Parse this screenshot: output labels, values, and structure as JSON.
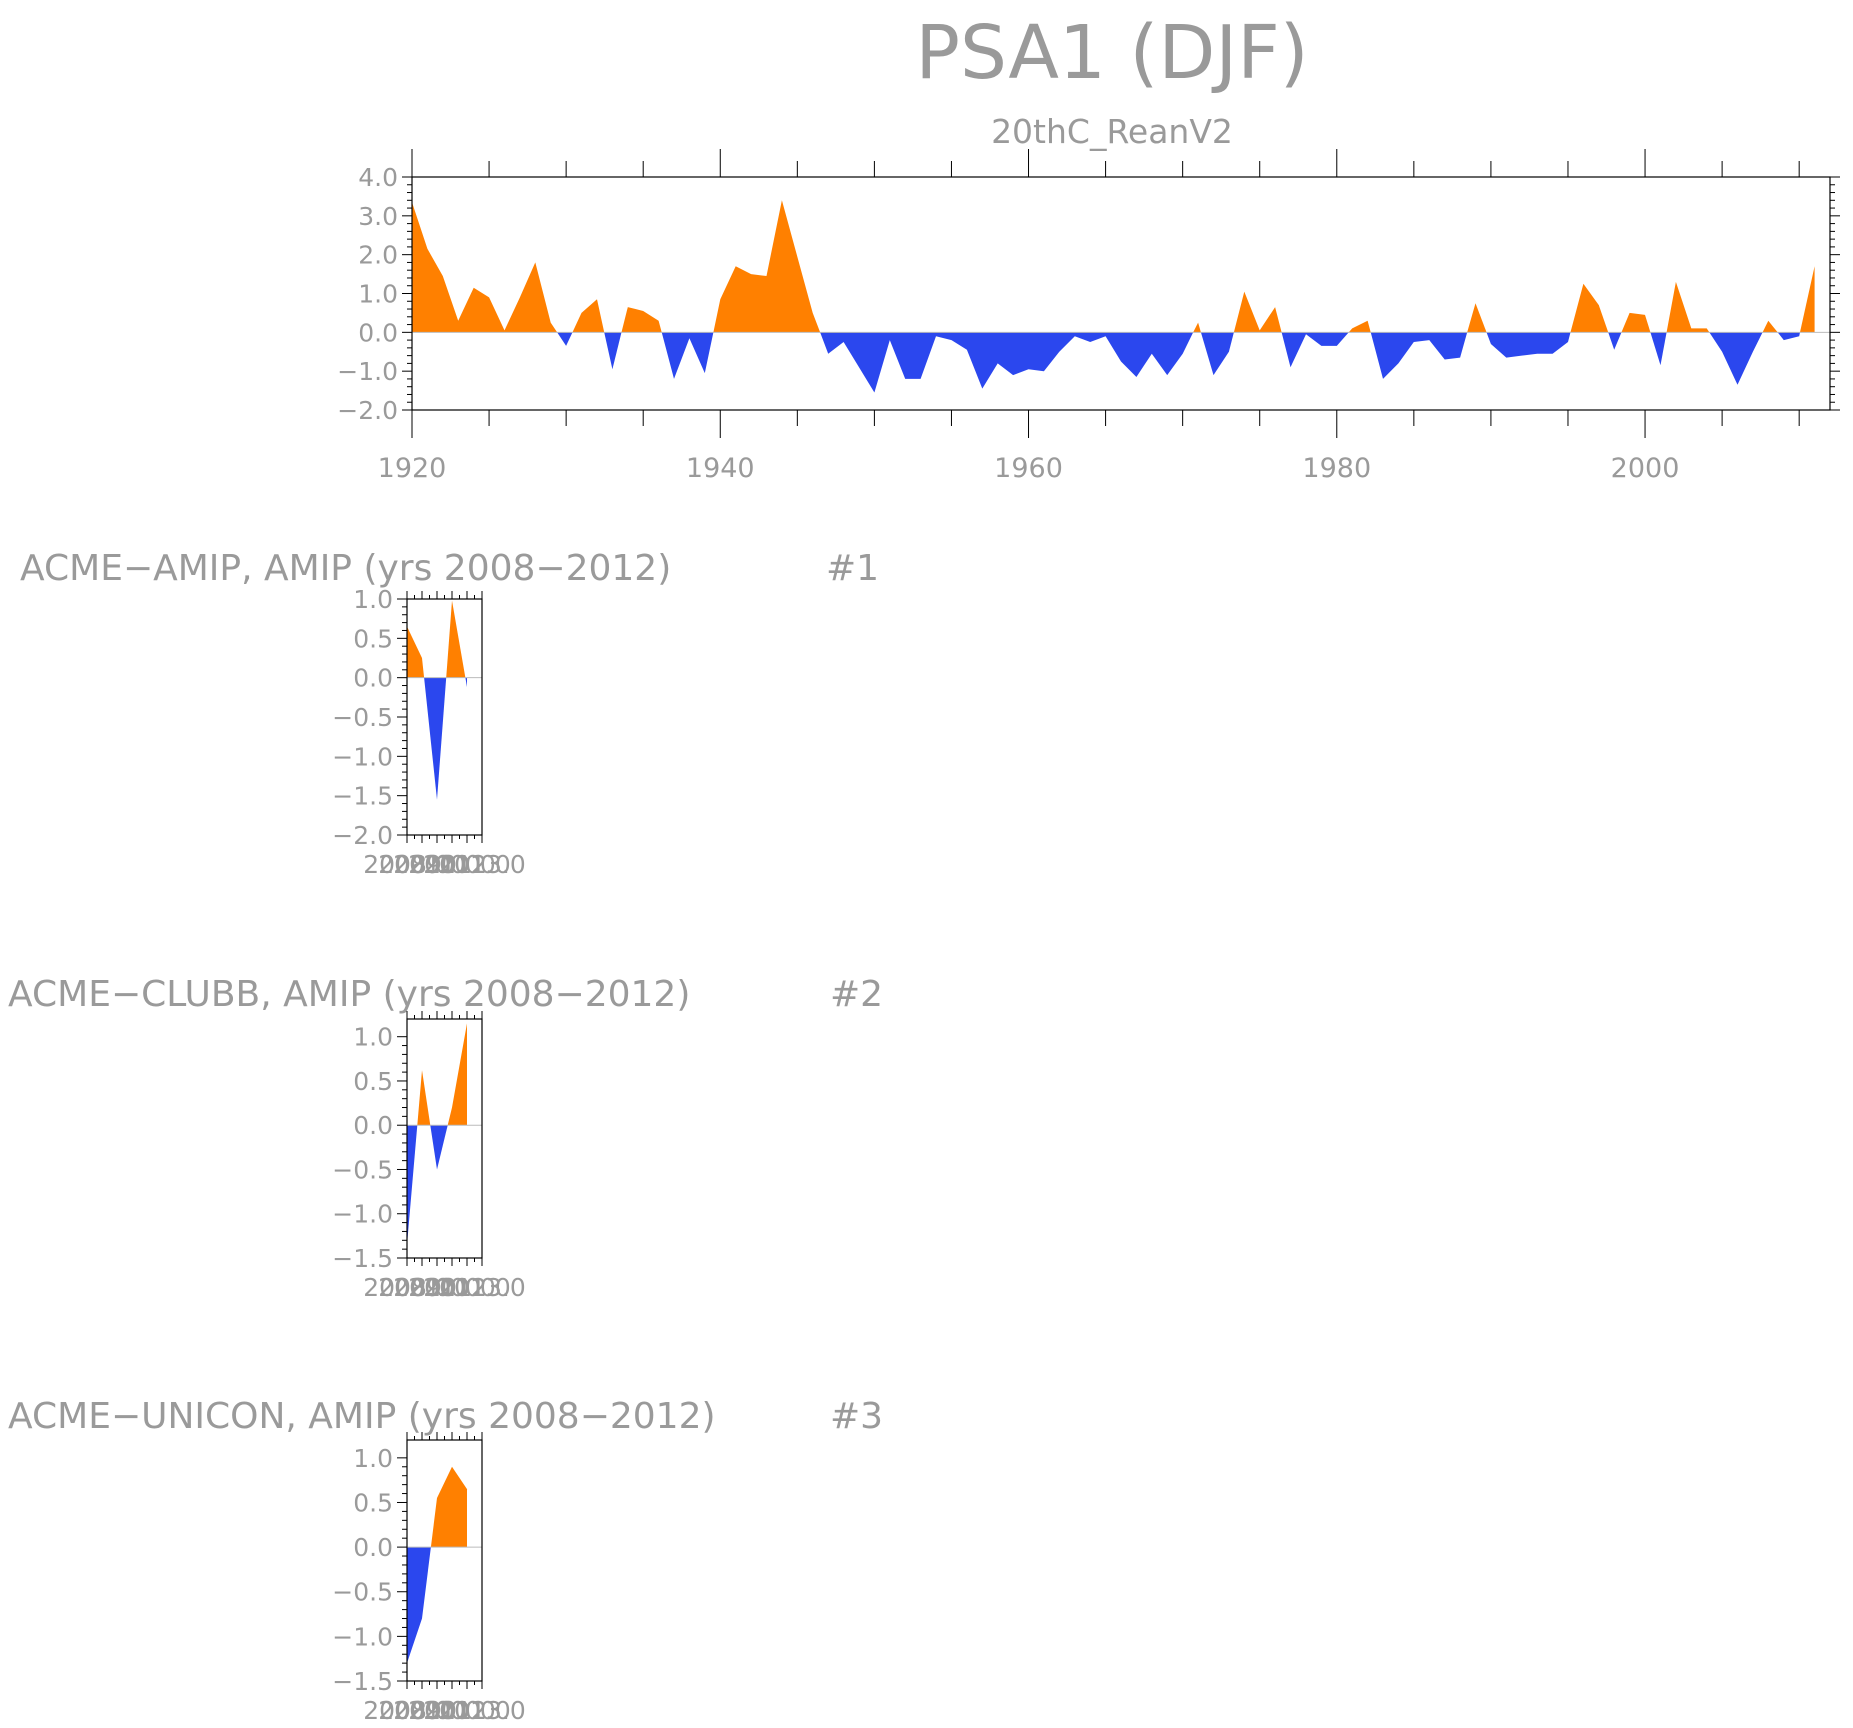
{
  "colors": {
    "positive": "#ff8000",
    "negative": "#2b47ee",
    "text": "#9a9a9a",
    "axis": "#000000"
  },
  "chart_data": [
    {
      "type": "area",
      "title": "PSA1 (DJF)",
      "subtitle": "20thC_ReanV2",
      "xlabel": "",
      "ylabel": "",
      "xlim": [
        1920,
        2012
      ],
      "ylim": [
        -2.0,
        4.0
      ],
      "x_ticks": [
        "1920",
        "1940",
        "1960",
        "1980",
        "2000"
      ],
      "y_ticks": [
        "4.0",
        "3.0",
        "2.0",
        "1.0",
        "0.0",
        "−1.0",
        "−2.0"
      ],
      "x": [
        1920,
        1921,
        1922,
        1923,
        1924,
        1925,
        1926,
        1927,
        1928,
        1929,
        1930,
        1931,
        1932,
        1933,
        1934,
        1935,
        1936,
        1937,
        1938,
        1939,
        1940,
        1941,
        1942,
        1943,
        1944,
        1945,
        1946,
        1947,
        1948,
        1949,
        1950,
        1951,
        1952,
        1953,
        1954,
        1955,
        1956,
        1957,
        1958,
        1959,
        1960,
        1961,
        1962,
        1963,
        1964,
        1965,
        1966,
        1967,
        1968,
        1969,
        1970,
        1971,
        1972,
        1973,
        1974,
        1975,
        1976,
        1977,
        1978,
        1979,
        1980,
        1981,
        1982,
        1983,
        1984,
        1985,
        1986,
        1987,
        1988,
        1989,
        1990,
        1991,
        1992,
        1993,
        1994,
        1995,
        1996,
        1997,
        1998,
        1999,
        2000,
        2001,
        2002,
        2003,
        2004,
        2005,
        2006,
        2007,
        2008,
        2009,
        2010,
        2011
      ],
      "values": [
        3.35,
        2.15,
        1.45,
        0.3,
        1.15,
        0.9,
        0.05,
        0.9,
        1.8,
        0.25,
        -0.35,
        0.5,
        0.85,
        -0.95,
        0.65,
        0.55,
        0.3,
        -1.2,
        -0.15,
        -1.05,
        0.85,
        1.7,
        1.5,
        1.45,
        3.4,
        1.95,
        0.5,
        -0.55,
        -0.25,
        -0.9,
        -1.55,
        -0.2,
        -1.2,
        -1.2,
        -0.1,
        -0.2,
        -0.45,
        -1.45,
        -0.8,
        -1.1,
        -0.95,
        -1.0,
        -0.5,
        -0.1,
        -0.25,
        -0.1,
        -0.75,
        -1.15,
        -0.55,
        -1.1,
        -0.55,
        0.25,
        -1.1,
        -0.5,
        1.05,
        0.05,
        0.65,
        -0.9,
        -0.05,
        -0.35,
        -0.35,
        0.1,
        0.3,
        -1.2,
        -0.8,
        -0.25,
        -0.2,
        -0.7,
        -0.65,
        0.75,
        -0.3,
        -0.65,
        -0.6,
        -0.55,
        -0.55,
        -0.25,
        1.25,
        0.7,
        -0.45,
        0.5,
        0.45,
        -0.85,
        1.3,
        0.1,
        0.1,
        -0.5,
        -1.35,
        -0.5,
        0.3,
        -0.2,
        -0.1,
        1.7
      ]
    },
    {
      "type": "area",
      "title": "ACME−AMIP, AMIP (yrs 2008−2012)",
      "label": "#1",
      "xlim": [
        2008,
        2013
      ],
      "ylim": [
        -2.0,
        1.0
      ],
      "y_ticks": [
        "1.0",
        "0.5",
        "0.0",
        "−0.5",
        "−1.0",
        "−1.5",
        "−2.0"
      ],
      "x_tick_text": "2008.0 2009.0 2010.0 2011.0 2012.0 2013.0",
      "x": [
        2008,
        2009,
        2010,
        2011,
        2012
      ],
      "values": [
        0.65,
        0.25,
        -1.55,
        0.98,
        -0.12
      ]
    },
    {
      "type": "area",
      "title": "ACME−CLUBB, AMIP (yrs 2008−2012)",
      "label": "#2",
      "xlim": [
        2008,
        2013
      ],
      "ylim": [
        -1.5,
        1.2
      ],
      "y_ticks": [
        "1.0",
        "0.5",
        "0.0",
        "−0.5",
        "−1.0",
        "−1.5"
      ],
      "x_tick_text": "2008.0 2009.0 2010.0 2011.0 2012.0 2013.0",
      "x": [
        2008,
        2009,
        2010,
        2011,
        2012
      ],
      "values": [
        -1.35,
        0.62,
        -0.5,
        0.2,
        1.15
      ]
    },
    {
      "type": "area",
      "title": "ACME−UNICON, AMIP (yrs 2008−2012)",
      "label": "#3",
      "xlim": [
        2008,
        2013
      ],
      "ylim": [
        -1.5,
        1.2
      ],
      "y_ticks": [
        "1.0",
        "0.5",
        "0.0",
        "−0.5",
        "−1.0",
        "−1.5"
      ],
      "x_tick_text": "2008.0 2009.0 2010.0 2011.0 2012.0 2013.0",
      "x": [
        2008,
        2009,
        2010,
        2011,
        2012
      ],
      "values": [
        -1.3,
        -0.8,
        0.55,
        0.9,
        0.65
      ]
    }
  ]
}
